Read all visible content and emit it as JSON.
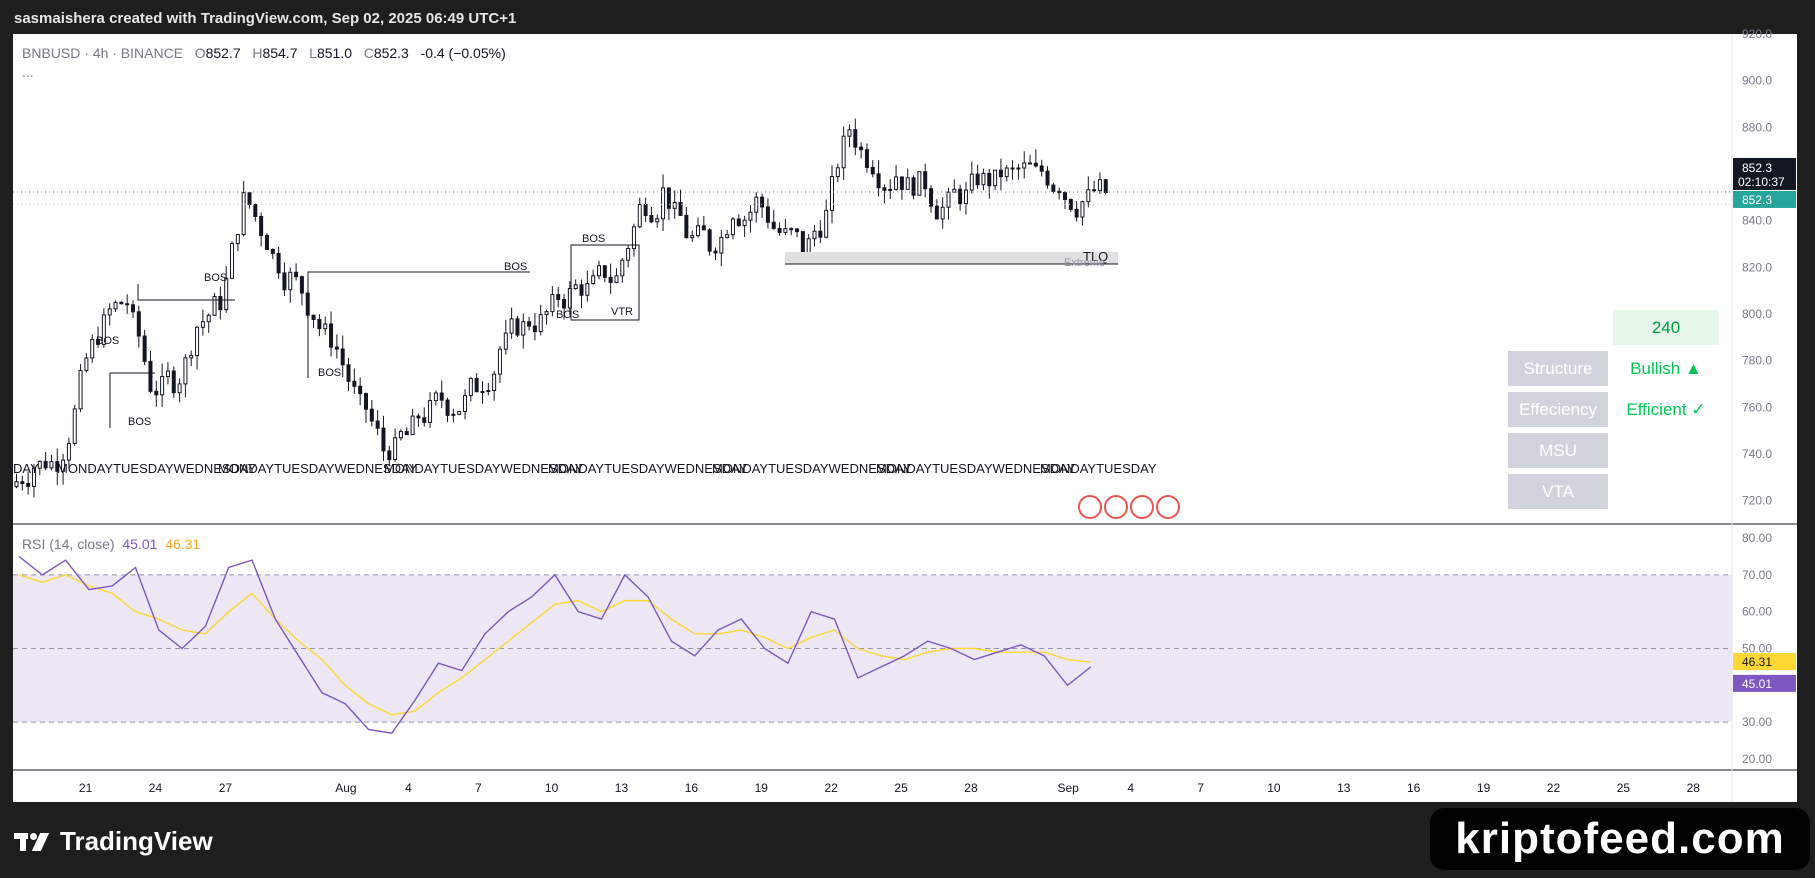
{
  "header": {
    "credit": "sasmaishera created with TradingView.com, Sep 02, 2025 06:49 UTC+1"
  },
  "legend": {
    "symbol": "BNBUSD · 4h · BINANCE",
    "o_label": "O",
    "o": "852.7",
    "h_label": "H",
    "h": "854.7",
    "l_label": "L",
    "l": "851.0",
    "c_label": "C",
    "c": "852.3",
    "change": "-0.4 (−0.05%)",
    "more": "..."
  },
  "rsi_legend": {
    "name": "RSI (14, close)",
    "rsi": "45.01",
    "ma": "46.31"
  },
  "price_tags": {
    "last": "852.3",
    "countdown": "02:10:37",
    "last2": "852.3"
  },
  "rsi_tags": {
    "ma": "46.31",
    "rsi": "45.01"
  },
  "annotations": {
    "bos": "BOS",
    "vtr": "VTR",
    "tlq": "TLQ",
    "extreme": "Extreme",
    "day_labels": [
      "DAY",
      "MONDAYTUESDAYWEDNESDAY",
      "MONDAYTUESDAYWEDNESDAY",
      "MONDAYTUESDAYWEDNESDAY",
      "MONDAYTUESDAYWEDNESDAY",
      "MONDAYTUESDAYWEDNESDAY",
      "MONDAYTUESDAYWEDNESDAY",
      "MONDAYTUESDAY"
    ]
  },
  "panel": {
    "timeframe": "240",
    "rows": [
      {
        "label": "Structure",
        "value": "Bullish ▲"
      },
      {
        "label": "Effeciency",
        "value": "Efficient ✓"
      },
      {
        "label": "MSU",
        "value": ""
      },
      {
        "label": "VTA",
        "value": ""
      }
    ]
  },
  "colors": {
    "up": "#131722",
    "down": "#131722",
    "rsi": "#7e57c2",
    "rsi_ma": "#fdd835",
    "rsi_band": "#ede7f6",
    "last_tag": "#26a69a",
    "bullish": "#00c853",
    "panel_btn": "#d1d4dc"
  },
  "brand": {
    "tv": "TradingView",
    "watermark": "kriptofeed.com"
  },
  "chart_data": [
    {
      "type": "candlestick",
      "title": "BNBUSD · 4h · BINANCE",
      "ylim": [
        710,
        920
      ],
      "y_ticks": [
        "920.0",
        "900.0",
        "880.0",
        "860.0",
        "840.0",
        "820.0",
        "800.0",
        "780.0",
        "760.0",
        "740.0",
        "720.0"
      ],
      "x_ticks": [
        "21",
        "24",
        "27",
        "Aug",
        "4",
        "7",
        "10",
        "13",
        "16",
        "19",
        "22",
        "25",
        "28",
        "Sep",
        "4",
        "7",
        "10",
        "13",
        "16",
        "19",
        "22",
        "25",
        "28"
      ],
      "series": [
        {
          "name": "BNBUSD close (approx.)",
          "x": [
            "Jul 18",
            "Jul 19",
            "Jul 20",
            "Jul 21",
            "Jul 22",
            "Jul 23",
            "Jul 24",
            "Jul 25",
            "Jul 26",
            "Jul 27",
            "Jul 28",
            "Jul 29",
            "Jul 30",
            "Jul 31",
            "Aug 1",
            "Aug 2",
            "Aug 3",
            "Aug 4",
            "Aug 5",
            "Aug 6",
            "Aug 7",
            "Aug 8",
            "Aug 9",
            "Aug 10",
            "Aug 11",
            "Aug 12",
            "Aug 13",
            "Aug 14",
            "Aug 15",
            "Aug 16",
            "Aug 17",
            "Aug 18",
            "Aug 19",
            "Aug 20",
            "Aug 21",
            "Aug 22",
            "Aug 23",
            "Aug 24",
            "Aug 25",
            "Aug 26",
            "Aug 27",
            "Aug 28",
            "Aug 29",
            "Aug 30",
            "Aug 31",
            "Sep 1",
            "Sep 2"
          ],
          "values": [
            735,
            738,
            770,
            795,
            805,
            770,
            772,
            795,
            806,
            848,
            832,
            815,
            800,
            785,
            760,
            742,
            748,
            758,
            760,
            770,
            785,
            794,
            800,
            808,
            812,
            815,
            845,
            852,
            835,
            830,
            845,
            848,
            835,
            828,
            842,
            880,
            865,
            860,
            855,
            845,
            850,
            858,
            860,
            860,
            856,
            848,
            852.3
          ]
        }
      ]
    },
    {
      "type": "line",
      "title": "RSI (14, close)",
      "ylim": [
        17,
        83
      ],
      "y_ticks": [
        "80.00",
        "70.00",
        "60.00",
        "50.00",
        "40.00",
        "30.00",
        "20.00"
      ],
      "bands": [
        30,
        70
      ],
      "series": [
        {
          "name": "RSI",
          "values": [
            75,
            70,
            74,
            66,
            67,
            72,
            55,
            50,
            56,
            72,
            74,
            58,
            48,
            38,
            35,
            28,
            27,
            36,
            46,
            44,
            54,
            60,
            64,
            70,
            60,
            58,
            70,
            64,
            52,
            48,
            55,
            58,
            50,
            46,
            60,
            58,
            42,
            45,
            48,
            52,
            50,
            47,
            49,
            51,
            48,
            40,
            45.01
          ]
        },
        {
          "name": "MA",
          "values": [
            70,
            68,
            70,
            67,
            65,
            60,
            58,
            55,
            54,
            60,
            65,
            58,
            52,
            47,
            40,
            35,
            32,
            33,
            38,
            42,
            47,
            52,
            57,
            62,
            63,
            60,
            63,
            63,
            58,
            54,
            54,
            55,
            53,
            50,
            53,
            55,
            50,
            48,
            47,
            49,
            50,
            50,
            49,
            49,
            49,
            47,
            46.31
          ]
        }
      ]
    }
  ]
}
